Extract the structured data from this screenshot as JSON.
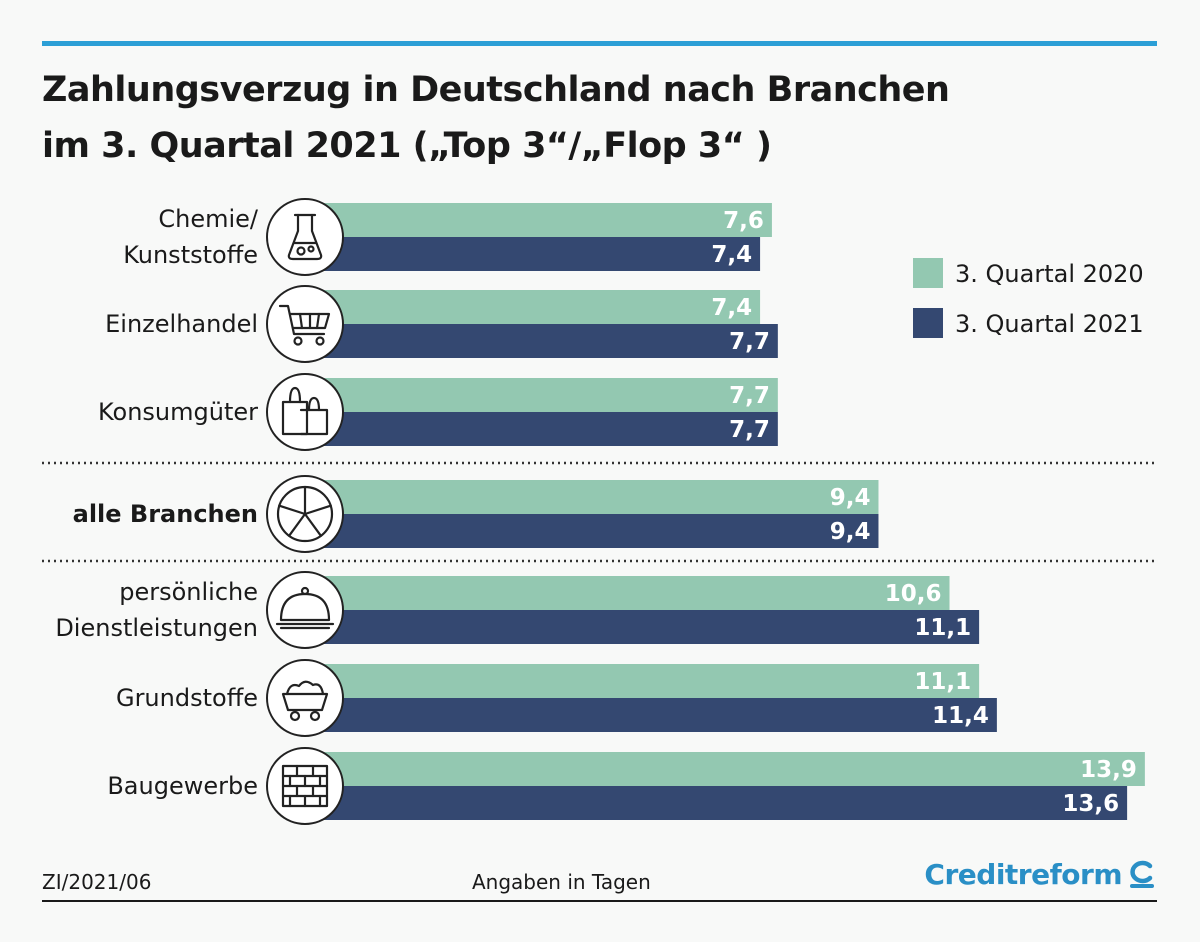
{
  "title_line1": "Zahlungsverzug in Deutschland nach Branchen",
  "title_line2": "im 3. Quartal 2021 („Top 3“/„Flop 3“ )",
  "footer_left": "ZI/2021/06",
  "footer_center": "Angaben in Tagen",
  "brand": "Creditreform",
  "colors": {
    "accent_rule": "#2c9fd6",
    "series_2020": "#93c8b1",
    "series_2021": "#344871",
    "divider": "#333333"
  },
  "chart_data": {
    "type": "bar",
    "orientation": "horizontal",
    "title": "Zahlungsverzug in Deutschland nach Branchen im 3. Quartal 2021 („Top 3“/„Flop 3“ )",
    "unit": "Angaben in Tagen",
    "legend_position": "top-right",
    "grid": false,
    "xlim": [
      0,
      14
    ],
    "categories": [
      {
        "label_lines": [
          "Chemie/",
          "Kunststoffe"
        ],
        "icon": "flask-icon",
        "bold": false,
        "group": "top"
      },
      {
        "label_lines": [
          "Einzelhandel"
        ],
        "icon": "shopping-cart-icon",
        "bold": false,
        "group": "top"
      },
      {
        "label_lines": [
          "Konsumgüter"
        ],
        "icon": "shopping-bags-icon",
        "bold": false,
        "group": "top"
      },
      {
        "label_lines": [
          "alle Branchen"
        ],
        "icon": "pie-segments-icon",
        "bold": true,
        "group": "all"
      },
      {
        "label_lines": [
          "persönliche",
          "Dienstleistungen"
        ],
        "icon": "serving-cloche-icon",
        "bold": false,
        "group": "flop"
      },
      {
        "label_lines": [
          "Grundstoffe"
        ],
        "icon": "mine-cart-icon",
        "bold": false,
        "group": "flop"
      },
      {
        "label_lines": [
          "Baugewerbe"
        ],
        "icon": "brick-wall-icon",
        "bold": false,
        "group": "flop"
      }
    ],
    "series": [
      {
        "name": "3. Quartal 2020",
        "values": [
          7.6,
          7.4,
          7.7,
          9.4,
          10.6,
          11.1,
          13.9
        ],
        "labels": [
          "7,6",
          "7,4",
          "7,7",
          "9,4",
          "10,6",
          "11,1",
          "13,9"
        ]
      },
      {
        "name": "3. Quartal 2021",
        "values": [
          7.4,
          7.7,
          7.7,
          9.4,
          11.1,
          11.4,
          13.6
        ],
        "labels": [
          "7,4",
          "7,7",
          "7,7",
          "9,4",
          "11,1",
          "11,4",
          "13,6"
        ]
      }
    ]
  }
}
